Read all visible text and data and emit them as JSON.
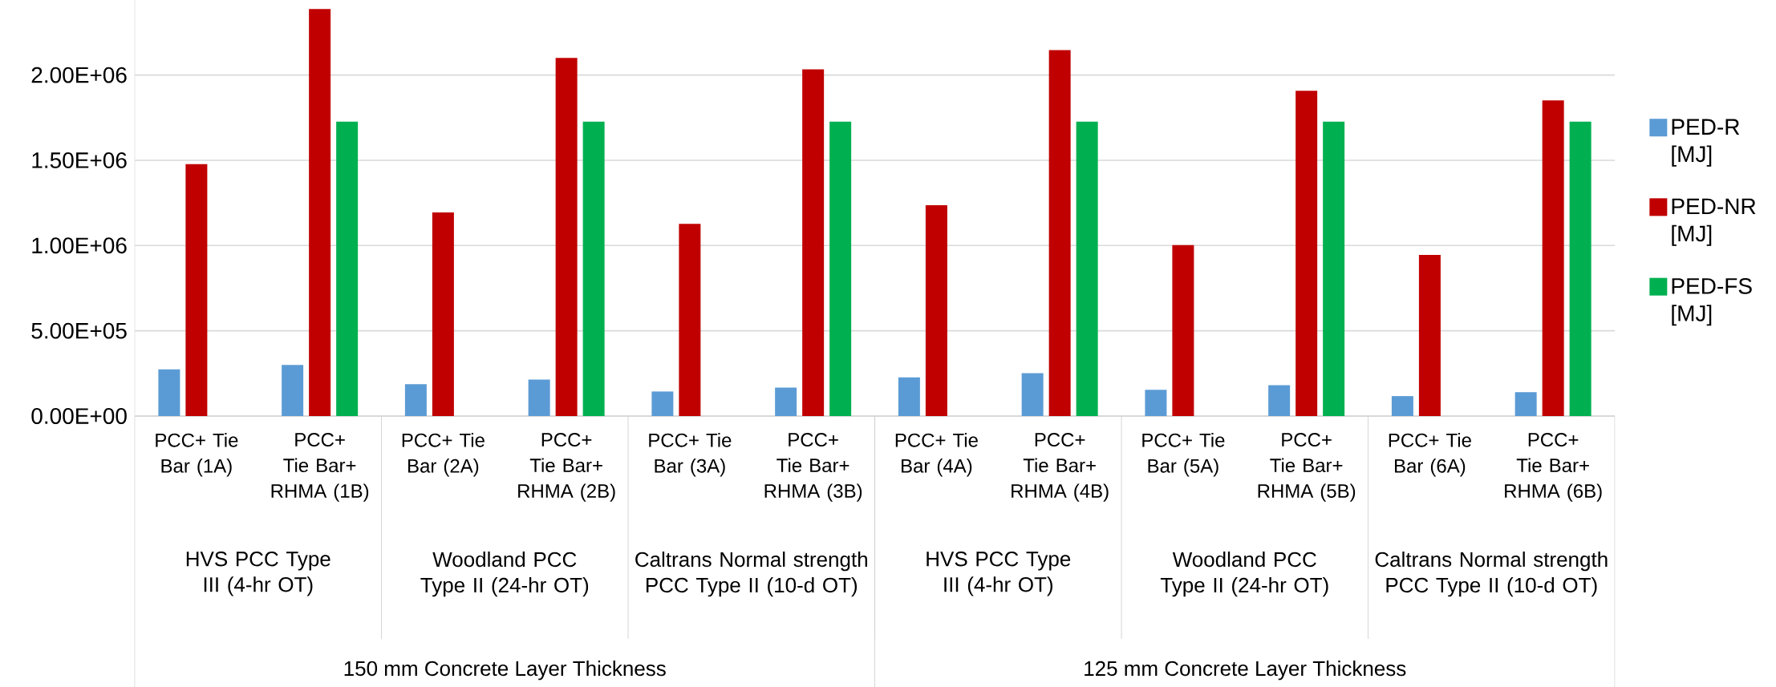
{
  "chart_data": {
    "type": "bar",
    "categories": [
      "PCC+ Tie Bar (1A)",
      "PCC+ Tie Bar+ RHMA (1B)",
      "PCC+ Tie Bar  (2A)",
      "PCC+ Tie Bar+ RHMA (2B)",
      "PCC+ Tie Bar (3A)",
      "PCC+ Tie Bar+ RHMA (3B)",
      "PCC+ Tie Bar (4A)",
      "PCC+ Tie Bar+ RHMA (4B)",
      "PCC+ Tie Bar (5A)",
      "PCC+ Tie Bar+ RHMA (5B)",
      "PCC+ Tie Bar (6A)",
      "PCC+ Tie Bar+ RHMA (6B)"
    ],
    "series": [
      {
        "name": "PED-R [MJ]",
        "color": "#5b9bd5",
        "values": [
          274000,
          300000,
          187000,
          214000,
          144000,
          167000,
          227000,
          251000,
          154000,
          181000,
          117000,
          140000
        ]
      },
      {
        "name": "PED-NR [MJ]",
        "color": "#c00000",
        "values": [
          1477000,
          2387000,
          1194000,
          2100000,
          1127000,
          2033000,
          1236000,
          2146000,
          1002000,
          1908000,
          945000,
          1851000
        ]
      },
      {
        "name": "PED-FS [MJ]",
        "color": "#00b050",
        "values": [
          null,
          1727000,
          null,
          1727000,
          null,
          1727000,
          null,
          1727000,
          null,
          1727000,
          null,
          1727000
        ]
      }
    ],
    "annotations": [
      "HVS PCC Type III (4-hr OT)",
      "Woodland PCC Type II (24-hr OT)",
      "Caltrans Normal strength PCC Type II (10-d OT)",
      "HVS PCC Type III (4-hr OT)",
      "Woodland PCC Type II (24-hr OT)",
      "Caltrans Normal strength PCC Type II (10-d OT)",
      "150 mm Concrete Layer Thickness",
      "125 mm Concrete Layer Thickness"
    ],
    "ylim": [
      0,
      2440000
    ],
    "yticks": [
      {
        "value": 0,
        "label": "0.00E+00"
      },
      {
        "value": 500000,
        "label": "5.00E+05"
      },
      {
        "value": 1000000,
        "label": "1.00E+06"
      },
      {
        "value": 1500000,
        "label": "1.50E+06"
      },
      {
        "value": 2000000,
        "label": "2.00E+06"
      }
    ],
    "grid": "y",
    "legend": "right"
  }
}
